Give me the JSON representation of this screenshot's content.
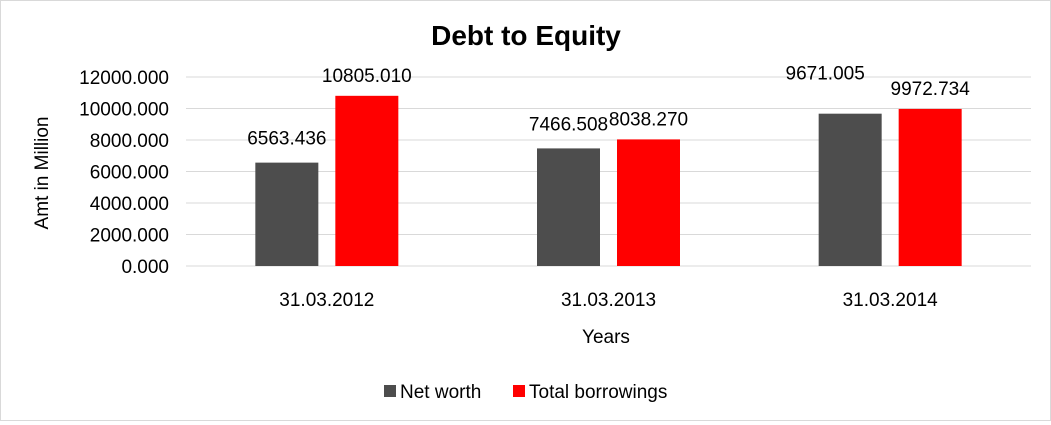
{
  "chart_data": {
    "type": "bar",
    "title": "Debt to Equity",
    "xlabel": "Years",
    "ylabel": "Amt in Million",
    "categories": [
      "31.03.2012",
      "31.03.2013",
      "31.03.2014"
    ],
    "series": [
      {
        "name": "Net worth",
        "color": "#4d4d4d",
        "values": [
          6563.436,
          7466.508,
          9671.005
        ],
        "labels": [
          "6563.436",
          "7466.508",
          "9671.005"
        ]
      },
      {
        "name": "Total borrowings",
        "color": "#ff0000",
        "values": [
          10805.01,
          8038.27,
          9972.734
        ],
        "labels": [
          "10805.010",
          "8038.270",
          "9972.734"
        ]
      }
    ],
    "ylim": [
      0,
      12000
    ],
    "yticks": [
      0,
      2000,
      4000,
      6000,
      8000,
      10000,
      12000
    ],
    "ytick_labels": [
      "0.000",
      "2000.000",
      "4000.000",
      "6000.000",
      "8000.000",
      "10000.000",
      "12000.000"
    ],
    "grid": true,
    "gridline_color": "#d9d9d9",
    "legend_position": "bottom"
  }
}
